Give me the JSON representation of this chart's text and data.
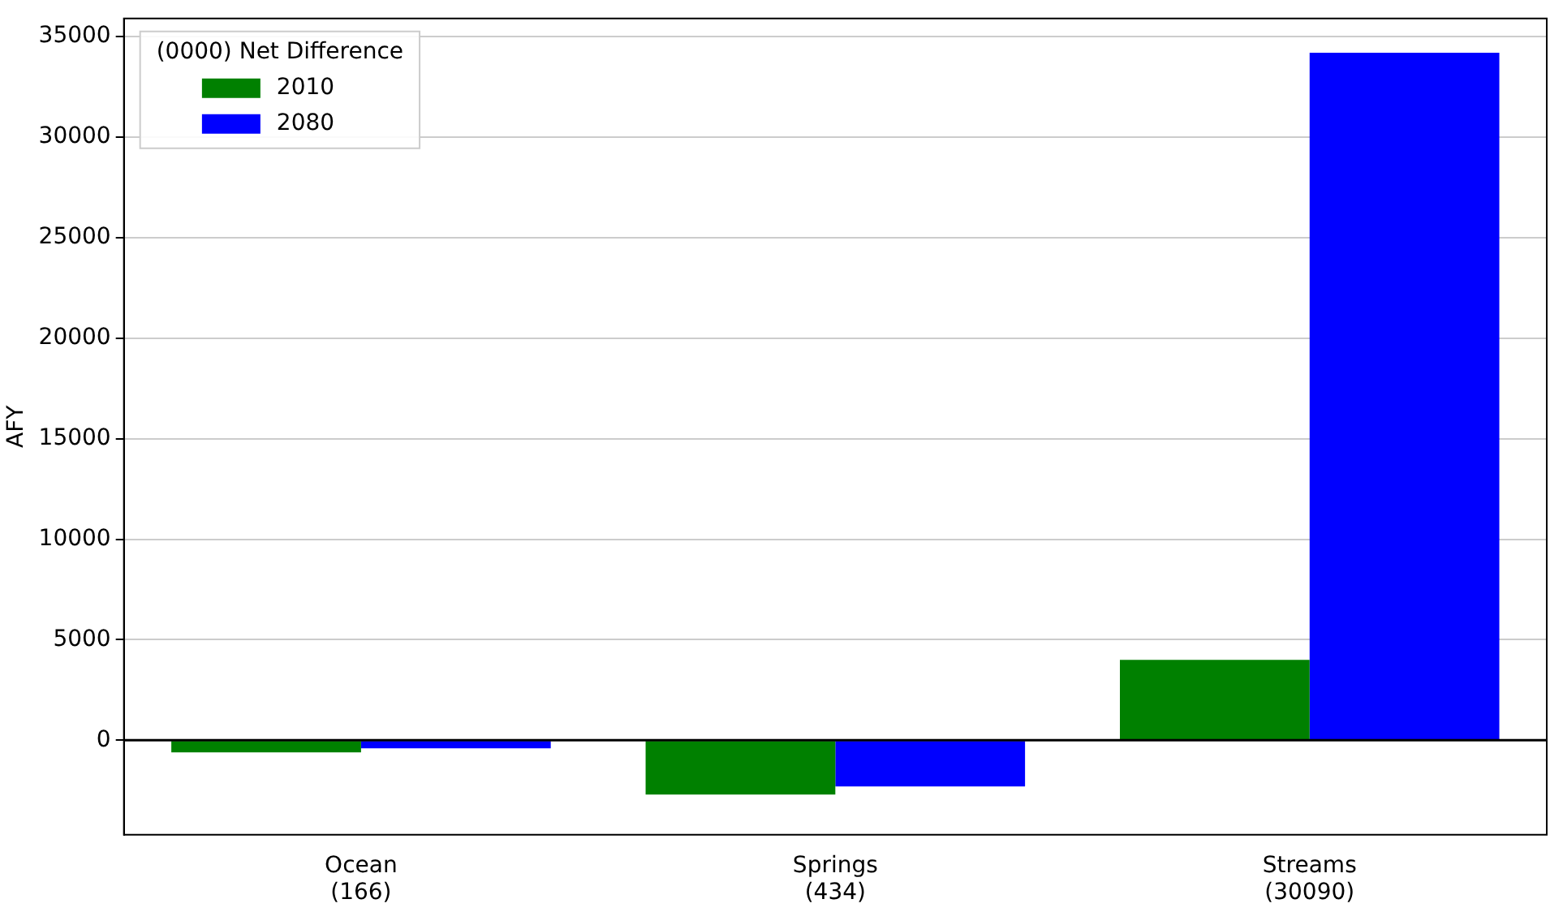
{
  "chart_data": {
    "type": "bar",
    "ylabel": "AFY",
    "legend_title": "(0000) Net Difference",
    "categories": [
      "Ocean\n(166)",
      "Springs\n(434)",
      "Streams\n(30090)"
    ],
    "series": [
      {
        "name": "2010",
        "color": "#008000",
        "values": [
          -600,
          -2700,
          4000
        ]
      },
      {
        "name": "2080",
        "color": "#0000ff",
        "values": [
          -400,
          -2300,
          34200
        ]
      }
    ],
    "ylim": [
      -4700,
      35900
    ],
    "yticks": [
      0,
      5000,
      10000,
      15000,
      20000,
      25000,
      30000,
      35000
    ],
    "grid": "y",
    "legend": "top left",
    "ref_lines": [
      {
        "axis": "y",
        "value": 0,
        "color": "#000000"
      }
    ]
  }
}
